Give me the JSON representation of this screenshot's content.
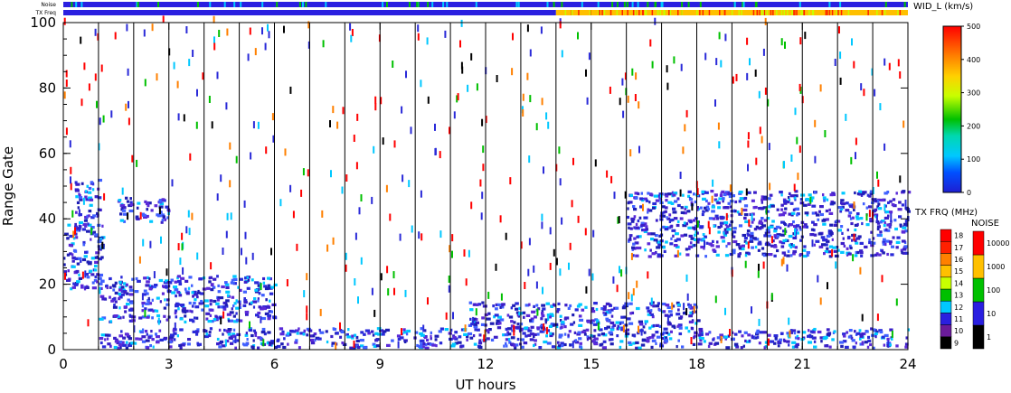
{
  "chart_data": {
    "type": "heatmap",
    "title": "",
    "xlabel": "UT hours",
    "ylabel": "Range Gate",
    "xlim": [
      0,
      24
    ],
    "ylim": [
      0,
      100
    ],
    "x_ticks": [
      "0",
      "3",
      "6",
      "9",
      "12",
      "15",
      "18",
      "21",
      "24"
    ],
    "y_ticks": [
      "0",
      "20",
      "40",
      "60",
      "80",
      "100"
    ],
    "scan_boundaries_ut": [
      1,
      2,
      3,
      4,
      5,
      6,
      7,
      8,
      9,
      10,
      11,
      12,
      13,
      14,
      15,
      16,
      17,
      18,
      19,
      20,
      21,
      22,
      23
    ],
    "noise_strip": {
      "label": "Noise",
      "dominant_color": "#2a1fe0"
    },
    "txfreq_strip": {
      "label": "TX Freq",
      "segments": [
        {
          "from_ut": 0,
          "to_ut": 14,
          "freq_mhz_level": "11",
          "color": "#2a1fe0"
        },
        {
          "from_ut": 14,
          "to_ut": 24,
          "freq_mhz_level": "14-15",
          "color": "#ffc000"
        }
      ]
    },
    "scatter_regions": [
      {
        "ut": [
          0.0,
          1.1
        ],
        "gate": [
          18,
          38
        ],
        "width_kms": "0-100",
        "color": "#2a2ad8"
      },
      {
        "ut": [
          0.3,
          1.0
        ],
        "gate": [
          36,
          52
        ],
        "width_kms": "0-100",
        "color": "#2a2ad8"
      },
      {
        "ut": [
          1.0,
          6.0
        ],
        "gate": [
          8,
          22
        ],
        "width_kms": "0-100",
        "color": "#2a2ad8"
      },
      {
        "ut": [
          1.5,
          3.0
        ],
        "gate": [
          38,
          46
        ],
        "width_kms": "0-100",
        "color": "#2a2ad8"
      },
      {
        "ut": [
          1.0,
          24.0
        ],
        "gate": [
          0,
          6
        ],
        "width_kms": "0-100",
        "color": "#2a2ad8"
      },
      {
        "ut": [
          16.0,
          24.0
        ],
        "gate": [
          28,
          48
        ],
        "width_kms": "0-100",
        "color": "#2a2ad8"
      },
      {
        "ut": [
          11.5,
          18.0
        ],
        "gate": [
          6,
          14
        ],
        "width_kms": "0-100",
        "color": "#2a2ad8"
      }
    ],
    "colorbar_width": {
      "label": "WID_L (km/s)",
      "ticks": [
        "0",
        "100",
        "200",
        "300",
        "400",
        "500"
      ],
      "range": [
        0,
        500
      ]
    },
    "colorbar_txfreq": {
      "label": "TX FRQ (MHz)",
      "levels": [
        "9",
        "10",
        "11",
        "12",
        "13",
        "14",
        "15",
        "16",
        "17",
        "18"
      ],
      "colors": [
        "#000000",
        "#6a1b9a",
        "#2a1fe0",
        "#00c8ff",
        "#00c000",
        "#c8ff00",
        "#ffc000",
        "#ff8000",
        "#ff2000",
        "#ff0000"
      ]
    },
    "colorbar_noise": {
      "label": "NOISE",
      "levels": [
        "1",
        "10",
        "100",
        "1000",
        "10000"
      ],
      "colors": [
        "#000000",
        "#2a1fe0",
        "#00c000",
        "#ffc000",
        "#ff0000"
      ]
    }
  }
}
